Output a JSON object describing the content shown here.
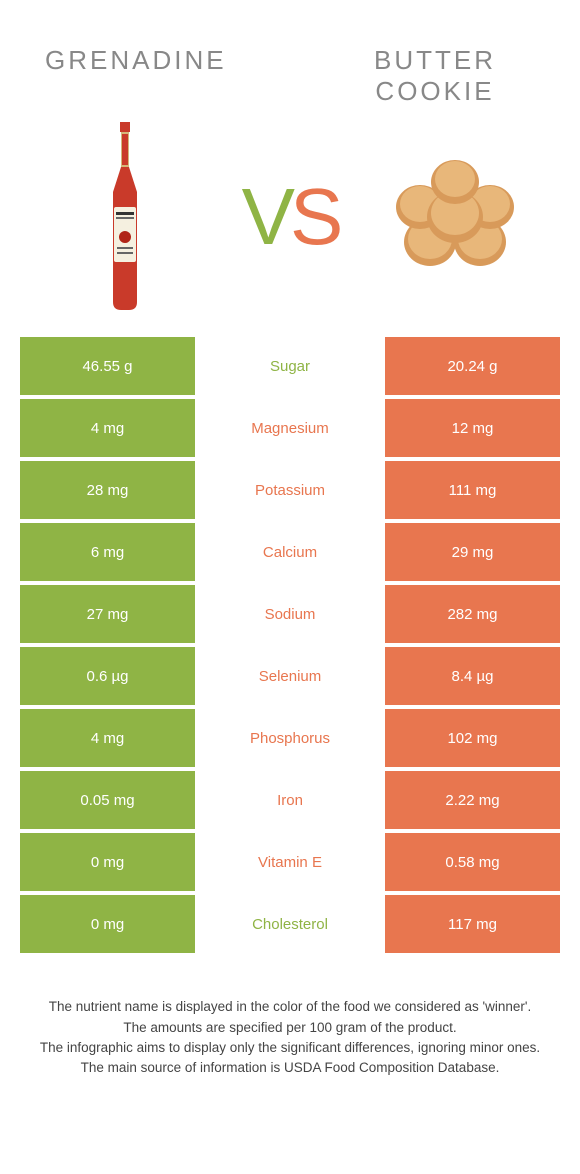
{
  "titles": {
    "left": "GRENADINE",
    "right": "BUTTER COOKIE",
    "vs": "VS"
  },
  "colors": {
    "left": "#8fb445",
    "right": "#e8764f",
    "vs_left": "#8fb445",
    "vs_right": "#e8764f",
    "title": "#888888",
    "footer": "#444444",
    "row_gap": "#ffffff"
  },
  "images": {
    "left_alt": "grenadine-bottle",
    "right_alt": "butter-cookies"
  },
  "rows": [
    {
      "name": "Sugar",
      "left": "46.55 g",
      "right": "20.24 g",
      "winner": "left"
    },
    {
      "name": "Magnesium",
      "left": "4 mg",
      "right": "12 mg",
      "winner": "right"
    },
    {
      "name": "Potassium",
      "left": "28 mg",
      "right": "111 mg",
      "winner": "right"
    },
    {
      "name": "Calcium",
      "left": "6 mg",
      "right": "29 mg",
      "winner": "right"
    },
    {
      "name": "Sodium",
      "left": "27 mg",
      "right": "282 mg",
      "winner": "right"
    },
    {
      "name": "Selenium",
      "left": "0.6 µg",
      "right": "8.4 µg",
      "winner": "right"
    },
    {
      "name": "Phosphorus",
      "left": "4 mg",
      "right": "102 mg",
      "winner": "right"
    },
    {
      "name": "Iron",
      "left": "0.05 mg",
      "right": "2.22 mg",
      "winner": "right"
    },
    {
      "name": "Vitamin E",
      "left": "0 mg",
      "right": "0.58 mg",
      "winner": "right"
    },
    {
      "name": "Cholesterol",
      "left": "0 mg",
      "right": "117 mg",
      "winner": "left"
    }
  ],
  "footer": {
    "line1": "The nutrient name is displayed in the color of the food we considered as 'winner'.",
    "line2": "The amounts are specified per 100 gram of the product.",
    "line3": "The infographic aims to display only the significant differences, ignoring minor ones.",
    "line4": "The main source of information is USDA Food Composition Database."
  }
}
